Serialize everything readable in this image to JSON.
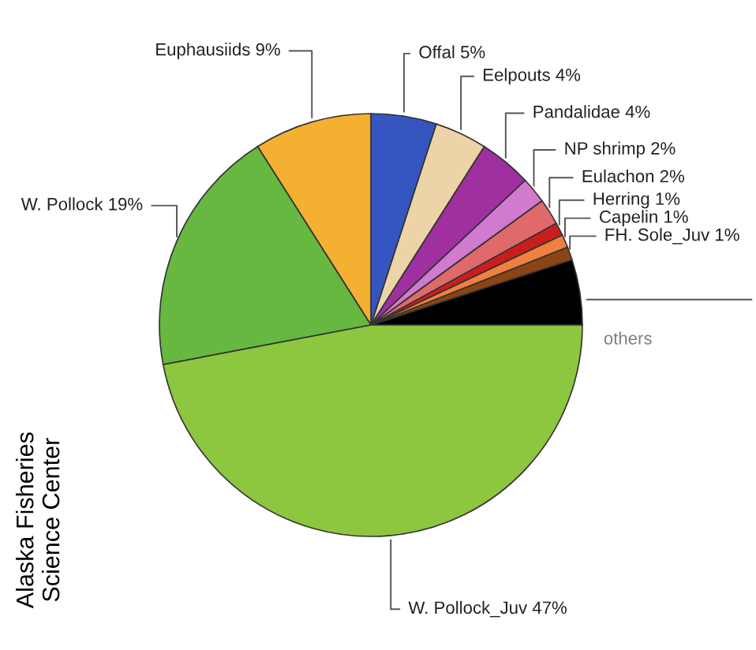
{
  "chart_data": {
    "type": "pie",
    "categories": [
      "others",
      "FH. Sole_Juv",
      "Capelin",
      "Herring",
      "Eulachon",
      "NP shrimp",
      "Pandalidae",
      "Eelpouts",
      "Offal",
      "Euphausiids",
      "W. Pollock",
      "W. Pollock_Juv"
    ],
    "values": [
      5,
      1,
      1,
      1,
      2,
      2,
      4,
      4,
      5,
      9,
      19,
      47
    ],
    "value_labels": [
      null,
      "1%",
      "1%",
      "1%",
      "2%",
      "2%",
      "4%",
      "4%",
      "5%",
      "9%",
      "19%",
      "47%"
    ],
    "colors": [
      "#000000",
      "#8b4513",
      "#f08040",
      "#c81e1e",
      "#e06a6a",
      "#d07ad0",
      "#a030a0",
      "#ecd4a8",
      "#3555c0",
      "#f4b030",
      "#66b840",
      "#8dc63f"
    ],
    "annotations": [
      "Alaska Fisheries Science Center"
    ],
    "legend": false
  }
}
